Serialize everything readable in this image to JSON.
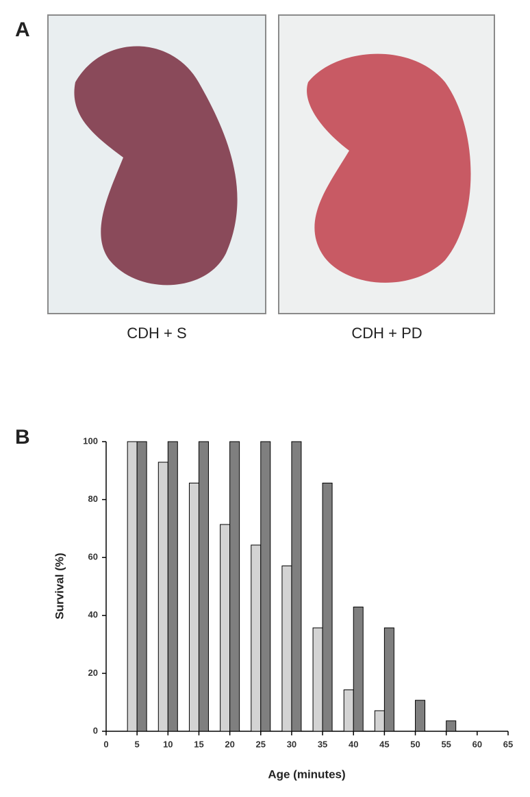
{
  "figure": {
    "panel_a": {
      "label": "A",
      "captions": [
        "CDH + S",
        "CDH + PD"
      ]
    },
    "panel_b": {
      "label": "B"
    }
  },
  "chart_data": {
    "type": "bar",
    "x_label": "Age (minutes)",
    "y_label": "Survival (%)",
    "x": [
      5,
      10,
      15,
      20,
      25,
      30,
      35,
      40,
      45,
      50,
      55
    ],
    "series": [
      {
        "color": "#d3d3d3",
        "values": [
          100,
          92.9,
          85.7,
          71.4,
          64.3,
          57.1,
          35.7,
          14.3,
          7.1,
          0,
          0
        ]
      },
      {
        "color": "#7f7f7f",
        "values": [
          100,
          100,
          100,
          100,
          100,
          100,
          85.7,
          42.9,
          35.7,
          10.7,
          3.6
        ]
      }
    ],
    "xlim": [
      0,
      65
    ],
    "xticks": [
      0,
      5,
      10,
      15,
      20,
      25,
      30,
      35,
      40,
      45,
      50,
      55,
      60,
      65
    ],
    "ylim": [
      0,
      100
    ],
    "yticks": [
      0,
      20,
      40,
      60,
      80,
      100
    ]
  }
}
